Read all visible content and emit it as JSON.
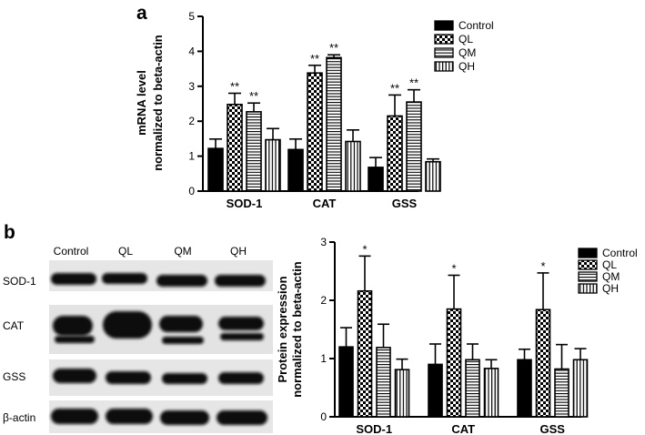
{
  "panels": {
    "a": {
      "letter": "a"
    },
    "b": {
      "letter": "b"
    }
  },
  "colors": {
    "control": "#000000",
    "edge": "#000000"
  },
  "blot": {
    "lanes": [
      "Control",
      "QL",
      "QM",
      "QH"
    ],
    "rows": [
      "SOD-1",
      "CAT",
      "GSS",
      "β-actin"
    ]
  },
  "chart_data": [
    {
      "type": "bar",
      "panel": "a",
      "categories": [
        "SOD-1",
        "CAT",
        "GSS"
      ],
      "series": [
        {
          "name": "Control",
          "pattern": "solid",
          "values": [
            1.22,
            1.19,
            0.68
          ],
          "errors": [
            0.27,
            0.3,
            0.28
          ],
          "sig": [
            "",
            "",
            ""
          ]
        },
        {
          "name": "QL",
          "pattern": "checker",
          "values": [
            2.48,
            3.38,
            2.15
          ],
          "errors": [
            0.32,
            0.22,
            0.6
          ],
          "sig": [
            "**",
            "**",
            "**"
          ]
        },
        {
          "name": "QM",
          "pattern": "hstripe",
          "values": [
            2.27,
            3.82,
            2.55
          ],
          "errors": [
            0.25,
            0.08,
            0.35
          ],
          "sig": [
            "**",
            "**",
            "**"
          ]
        },
        {
          "name": "QH",
          "pattern": "vstripe",
          "values": [
            1.47,
            1.42,
            0.84
          ],
          "errors": [
            0.32,
            0.33,
            0.08
          ],
          "sig": [
            "",
            "",
            ""
          ]
        }
      ],
      "ylabel": [
        "mRNA level",
        "normalized to beta-actin"
      ],
      "ylim": [
        0,
        5
      ],
      "yticks": [
        0,
        1,
        2,
        3,
        4,
        5
      ],
      "legend": "top-right",
      "grid": false
    },
    {
      "type": "bar",
      "panel": "b",
      "categories": [
        "SOD-1",
        "CAT",
        "GSS"
      ],
      "series": [
        {
          "name": "Control",
          "pattern": "solid",
          "values": [
            1.2,
            0.9,
            0.98
          ],
          "errors": [
            0.33,
            0.35,
            0.18
          ],
          "sig": [
            "",
            "",
            ""
          ]
        },
        {
          "name": "QL",
          "pattern": "checker",
          "values": [
            2.16,
            1.85,
            1.84
          ],
          "errors": [
            0.6,
            0.58,
            0.63
          ],
          "sig": [
            "*",
            "*",
            "*"
          ]
        },
        {
          "name": "QM",
          "pattern": "hstripe",
          "values": [
            1.19,
            0.98,
            0.82
          ],
          "errors": [
            0.4,
            0.27,
            0.42
          ],
          "sig": [
            "",
            "",
            ""
          ]
        },
        {
          "name": "QH",
          "pattern": "vstripe",
          "values": [
            0.81,
            0.83,
            0.98
          ],
          "errors": [
            0.18,
            0.15,
            0.19
          ],
          "sig": [
            "",
            "",
            ""
          ]
        }
      ],
      "ylabel": [
        "Protein expression",
        "normalized to beta-actin"
      ],
      "ylim": [
        0,
        3
      ],
      "yticks": [
        0,
        1,
        2,
        3
      ],
      "legend": "top-right",
      "grid": false
    }
  ]
}
